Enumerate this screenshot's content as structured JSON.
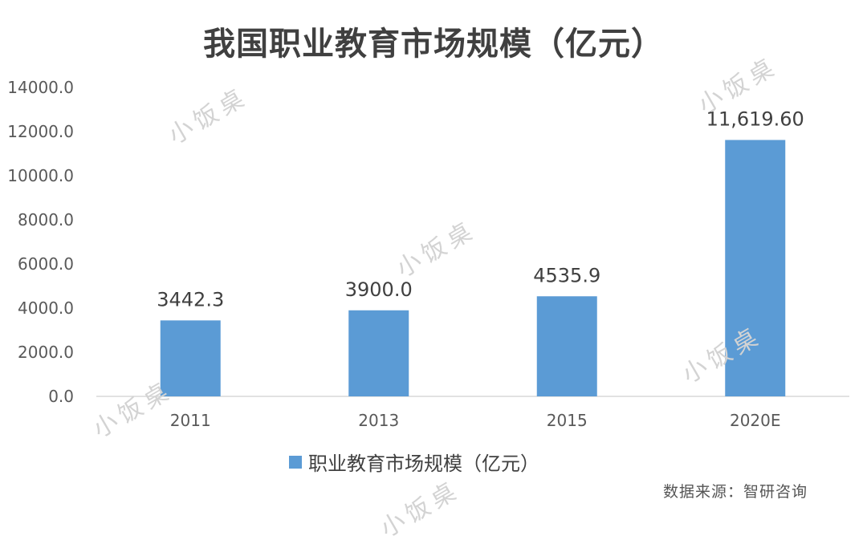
{
  "chart_data": {
    "type": "bar",
    "title": "我国职业教育市场规模（亿元）",
    "categories": [
      "2011",
      "2013",
      "2015",
      "2020E"
    ],
    "series": [
      {
        "name": "职业教育市场规模（亿元）",
        "values": [
          3442.3,
          3900.0,
          4535.9,
          11619.6
        ]
      }
    ],
    "data_labels": [
      "3442.3",
      "3900.0",
      "4535.9",
      "11,619.60"
    ],
    "y_ticks": [
      "0.0",
      "2000.0",
      "4000.0",
      "6000.0",
      "8000.0",
      "10000.0",
      "12000.0",
      "14000.0"
    ],
    "ylim": [
      0,
      14000
    ],
    "xlabel": "",
    "ylabel": "",
    "grid": false,
    "legend_position": "bottom",
    "bar_color": "#5b9bd5"
  },
  "source_note": "数据来源：智研咨询",
  "watermark": "小饭桌"
}
